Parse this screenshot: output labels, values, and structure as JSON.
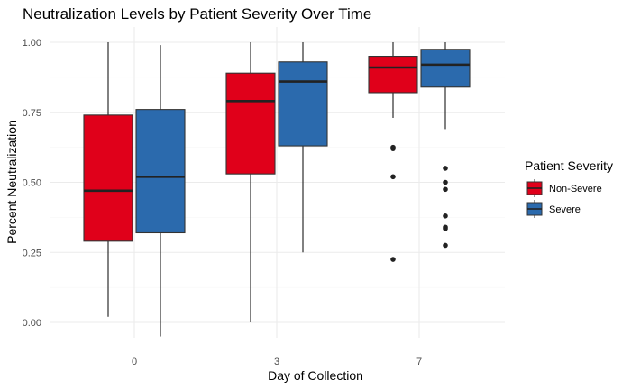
{
  "chart_data": {
    "type": "boxplot",
    "title": "Neutralization Levels by Patient Severity Over Time",
    "xlabel": "Day of Collection",
    "ylabel": "Percent Neutralization",
    "categories": [
      "0",
      "3",
      "7"
    ],
    "ylim": [
      -0.05,
      1.0
    ],
    "yticks": [
      "0.00",
      "0.25",
      "0.50",
      "0.75",
      "1.00"
    ],
    "grid": true,
    "legend": {
      "title": "Patient Severity",
      "position": "right"
    },
    "series": [
      {
        "name": "Non-Severe",
        "color": "#e0001a",
        "boxes": [
          {
            "min": 0.02,
            "q1": 0.29,
            "median": 0.47,
            "q3": 0.74,
            "max": 1.0,
            "outliers": []
          },
          {
            "min": 0.0,
            "q1": 0.53,
            "median": 0.79,
            "q3": 0.89,
            "max": 1.0,
            "outliers": []
          },
          {
            "min": 0.73,
            "q1": 0.82,
            "median": 0.91,
            "q3": 0.95,
            "max": 1.0,
            "outliers": [
              0.62,
              0.625,
              0.52,
              0.225
            ]
          }
        ]
      },
      {
        "name": "Severe",
        "color": "#2b6aad",
        "boxes": [
          {
            "min": -0.05,
            "q1": 0.32,
            "median": 0.52,
            "q3": 0.76,
            "max": 0.99,
            "outliers": []
          },
          {
            "min": 0.25,
            "q1": 0.63,
            "median": 0.86,
            "q3": 0.93,
            "max": 1.0,
            "outliers": []
          },
          {
            "min": 0.69,
            "q1": 0.84,
            "median": 0.92,
            "q3": 0.975,
            "max": 1.0,
            "outliers": [
              0.55,
              0.5,
              0.475,
              0.38,
              0.34,
              0.335,
              0.275
            ]
          }
        ]
      }
    ]
  }
}
